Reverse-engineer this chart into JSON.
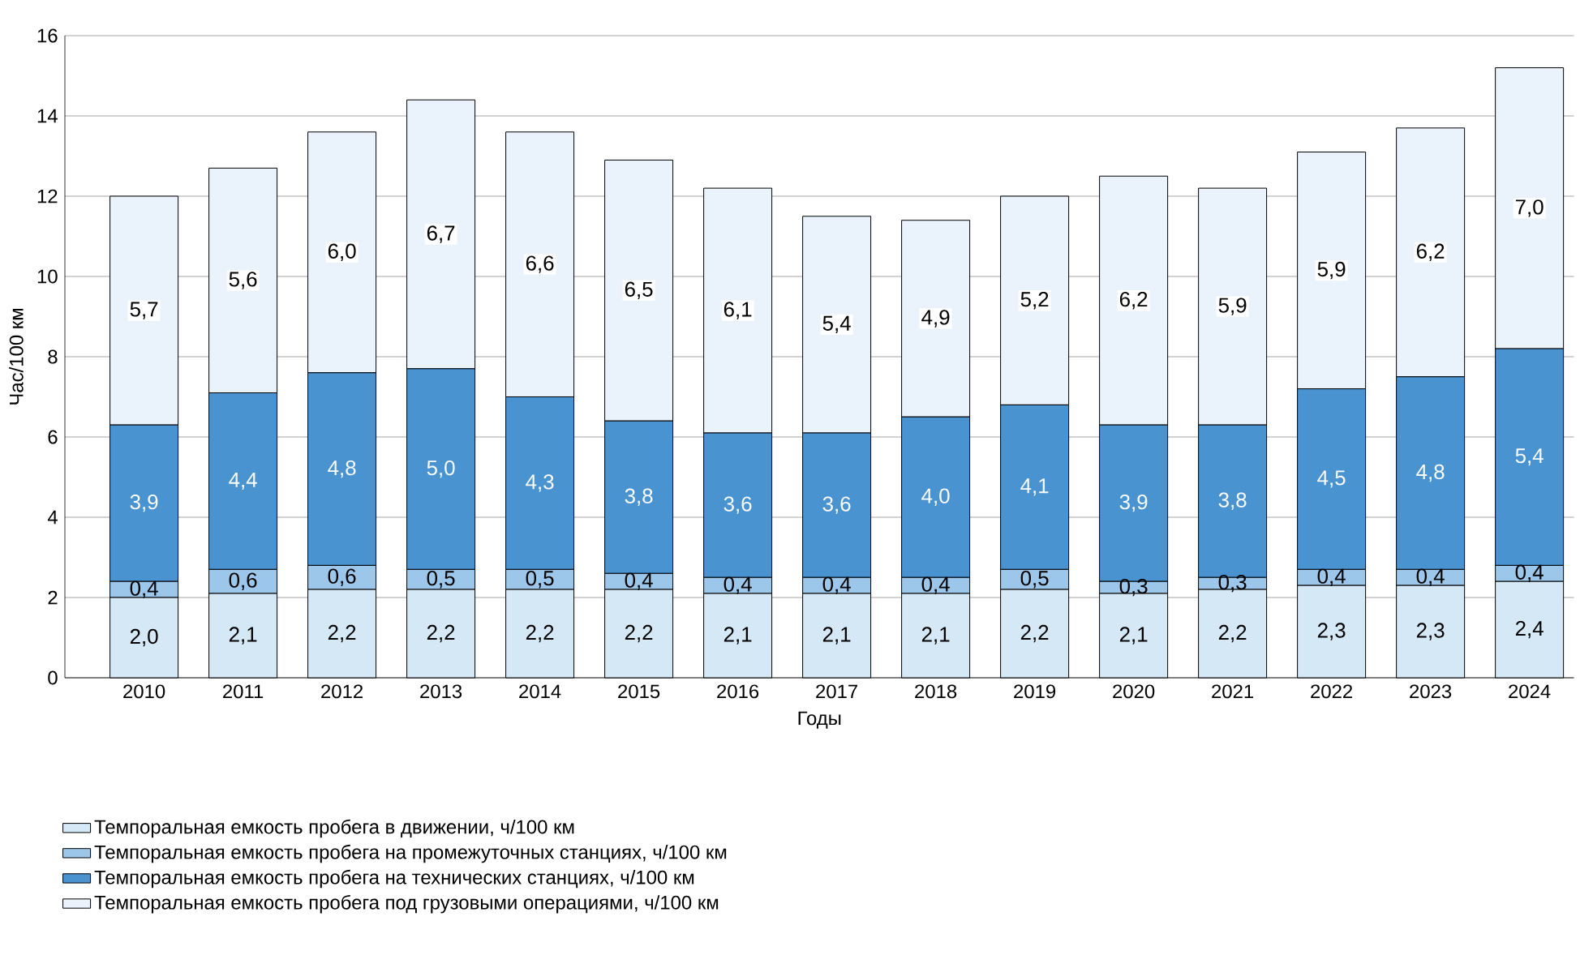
{
  "chart_data": {
    "type": "bar",
    "stacked": true,
    "xlabel": "Годы",
    "ylabel": "Час/100 км",
    "categories": [
      "2010",
      "2011",
      "2012",
      "2013",
      "2014",
      "2015",
      "2016",
      "2017",
      "2018",
      "2019",
      "2020",
      "2021",
      "2022",
      "2023",
      "2024"
    ],
    "series": [
      {
        "name": "Темпоральная емкость пробега в движении, ч/100 км",
        "color": "#d5e8f6",
        "values": [
          2.0,
          2.1,
          2.2,
          2.2,
          2.2,
          2.2,
          2.1,
          2.1,
          2.1,
          2.2,
          2.1,
          2.2,
          2.3,
          2.3,
          2.4
        ],
        "value_labels": [
          "2,0",
          "2,1",
          "2,2",
          "2,2",
          "2,2",
          "2,2",
          "2,1",
          "2,1",
          "2,1",
          "2,2",
          "2,1",
          "2,2",
          "2,3",
          "2,3",
          "2,4"
        ]
      },
      {
        "name": "Темпоральная емкость пробега на промежуточных станциях, ч/100 км",
        "color": "#9cc6ea",
        "values": [
          0.4,
          0.6,
          0.6,
          0.5,
          0.5,
          0.4,
          0.4,
          0.4,
          0.4,
          0.5,
          0.3,
          0.3,
          0.4,
          0.4,
          0.4
        ],
        "value_labels": [
          "0,4",
          "0,6",
          "0,6",
          "0,5",
          "0,5",
          "0,4",
          "0,4",
          "0,4",
          "0,4",
          "0,5",
          "0,3",
          "0,3",
          "0,4",
          "0,4",
          "0,4"
        ]
      },
      {
        "name": "Темпоральная емкость пробега на технических станциях, ч/100 км",
        "color": "#4a93d1",
        "values": [
          3.9,
          4.4,
          4.8,
          5.0,
          4.3,
          3.8,
          3.6,
          3.6,
          4.0,
          4.1,
          3.9,
          3.8,
          4.5,
          4.8,
          5.4
        ],
        "value_labels": [
          "3,9",
          "4,4",
          "4,8",
          "5,0",
          "4,3",
          "3,8",
          "3,6",
          "3,6",
          "4,0",
          "4,1",
          "3,9",
          "3,8",
          "4,5",
          "4,8",
          "5,4"
        ]
      },
      {
        "name": "Темпоральная емкость пробега под грузовыми операциями, ч/100 км",
        "color": "#eaf2fb",
        "values": [
          5.7,
          5.6,
          6.0,
          6.7,
          6.6,
          6.5,
          6.1,
          5.4,
          4.9,
          5.2,
          6.2,
          5.9,
          5.9,
          6.2,
          7.0
        ],
        "value_labels": [
          "5,7",
          "5,6",
          "6,0",
          "6,7",
          "6,6",
          "6,5",
          "6,1",
          "5,4",
          "4,9",
          "5,2",
          "6,2",
          "5,9",
          "5,9",
          "6,2",
          "7,0"
        ]
      }
    ],
    "ylim": [
      0,
      16
    ],
    "yticks": [
      0,
      2,
      4,
      6,
      8,
      10,
      12,
      14,
      16
    ],
    "grid": "y",
    "legend": "bottom"
  }
}
